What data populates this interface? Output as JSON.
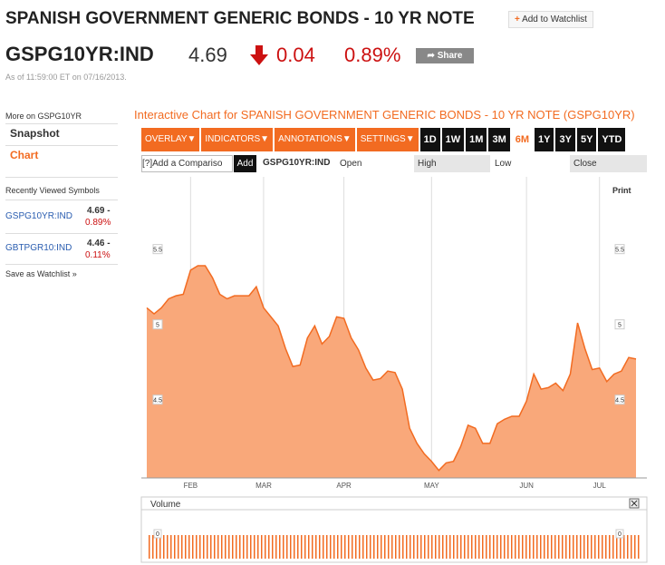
{
  "header": {
    "title": "SPANISH GOVERNMENT GENERIC BONDS - 10 YR NOTE",
    "watchlist_button": "Add to Watchlist",
    "ticker": "GSPG10YR:IND",
    "price": "4.69",
    "change": "0.04",
    "change_pct": "0.89%",
    "share_button": "Share",
    "timestamp": "As of 11:59:00 ET on 07/16/2013."
  },
  "sidebar": {
    "more_on": "More on GSPG10YR",
    "links": [
      "Snapshot",
      "Chart"
    ],
    "recent_title": "Recently Viewed Symbols",
    "recent": [
      {
        "symbol": "GSPG10YR:IND",
        "price": "4.69 -",
        "change": "0.89%"
      },
      {
        "symbol": "GBTPGR10:IND",
        "price": "4.46 -",
        "change": "0.11%"
      }
    ],
    "save": "Save as Watchlist »"
  },
  "toolbar": {
    "chart_title": "Interactive Chart for SPANISH GOVERNMENT GENERIC BONDS - 10 YR NOTE (GSPG10YR)",
    "menus": [
      "OVERLAY▼",
      "INDICATORS▼",
      "ANNOTATIONS▼",
      "SETTINGS▼"
    ],
    "ranges": [
      "1D",
      "1W",
      "1M",
      "3M",
      "6M",
      "1Y",
      "3Y",
      "5Y",
      "YTD"
    ],
    "selected_range": 4,
    "compare_placeholder": "[?]Add a Compariso",
    "add_button": "Add",
    "symbol": "GSPG10YR:IND",
    "fields": [
      "Open",
      "High",
      "Low",
      "Close"
    ],
    "print": "Print"
  },
  "chart_data": {
    "type": "area",
    "color": "#f26b21",
    "categories": [
      null,
      null,
      null,
      null,
      null,
      null,
      "FEB",
      null,
      null,
      null,
      null,
      null,
      null,
      null,
      null,
      null,
      "MAR",
      null,
      null,
      null,
      null,
      null,
      null,
      null,
      null,
      null,
      null,
      "APR",
      null,
      null,
      null,
      null,
      null,
      null,
      null,
      null,
      null,
      null,
      null,
      "MAY",
      null,
      null,
      null,
      null,
      null,
      null,
      null,
      null,
      null,
      null,
      null,
      null,
      "JUN",
      null,
      null,
      null,
      null,
      null,
      null,
      null,
      null,
      null,
      "JUL",
      null,
      null,
      null,
      null,
      null
    ],
    "values": [
      5.11,
      5.07,
      5.11,
      5.17,
      5.19,
      5.2,
      5.36,
      5.39,
      5.39,
      5.31,
      5.2,
      5.17,
      5.19,
      5.19,
      5.19,
      5.25,
      5.11,
      5.05,
      4.99,
      4.84,
      4.72,
      4.73,
      4.91,
      4.99,
      4.87,
      4.92,
      5.05,
      5.04,
      4.91,
      4.83,
      4.71,
      4.63,
      4.64,
      4.69,
      4.68,
      4.57,
      4.31,
      4.21,
      4.14,
      4.09,
      4.03,
      4.08,
      4.09,
      4.19,
      4.33,
      4.31,
      4.21,
      4.21,
      4.34,
      4.37,
      4.39,
      4.39,
      4.49,
      4.67,
      4.57,
      4.58,
      4.61,
      4.56,
      4.67,
      5.01,
      4.84,
      4.7,
      4.71,
      4.62,
      4.67,
      4.69,
      4.78,
      4.77
    ],
    "ylim": [
      3.98,
      5.98
    ],
    "yticks": [
      4.5,
      5,
      5.5
    ],
    "grid": true,
    "volume": {
      "label": "Volume",
      "yticks": [
        0
      ]
    }
  }
}
